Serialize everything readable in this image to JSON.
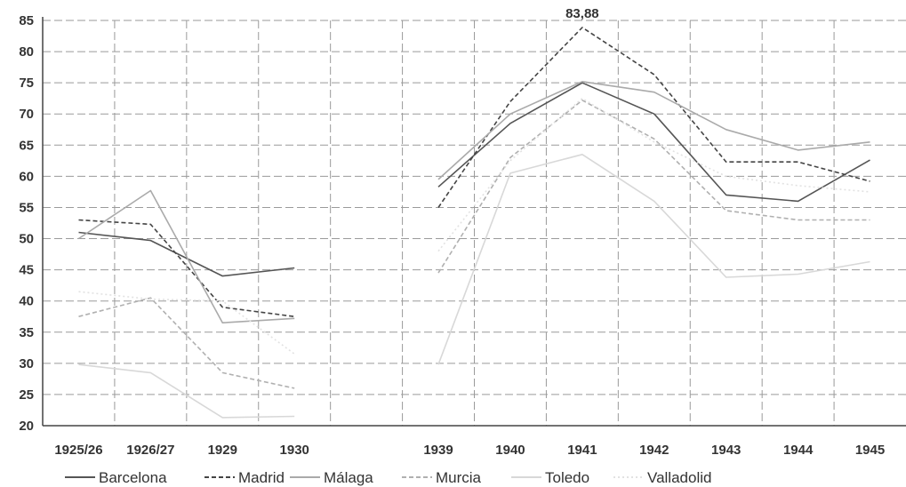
{
  "chart_data": {
    "type": "line",
    "categories": [
      "1925/26",
      "1926/27",
      "1929",
      "1930",
      "",
      "1939",
      "1940",
      "1941",
      "1942",
      "1943",
      "1944",
      "1945"
    ],
    "ylim": [
      20,
      85
    ],
    "yticks": [
      20,
      25,
      30,
      35,
      40,
      45,
      50,
      55,
      60,
      65,
      70,
      75,
      80,
      85
    ],
    "grid": true,
    "legend": "bottom",
    "annotations": [
      {
        "text": "83,88",
        "category": "1941",
        "series": "Madrid"
      }
    ],
    "series": [
      {
        "name": "Barcelona",
        "color": "#555555",
        "dash": "solid",
        "values": [
          51.0,
          49.7,
          44.0,
          45.3,
          null,
          58.3,
          68.5,
          75.0,
          70.0,
          57.0,
          56.0,
          62.6
        ]
      },
      {
        "name": "Madrid",
        "color": "#444444",
        "dash": "dashed",
        "values": [
          53.0,
          52.3,
          39.0,
          37.5,
          null,
          55.0,
          72.0,
          83.88,
          76.3,
          62.3,
          62.3,
          59.2
        ]
      },
      {
        "name": "Málaga",
        "color": "#aaaaaa",
        "dash": "solid",
        "values": [
          50.0,
          57.7,
          36.5,
          37.2,
          null,
          59.5,
          70.0,
          75.2,
          73.5,
          67.5,
          64.2,
          65.5
        ]
      },
      {
        "name": "Murcia",
        "color": "#b0b0b0",
        "dash": "dashed",
        "values": [
          37.5,
          40.5,
          28.5,
          26.0,
          null,
          44.5,
          63.0,
          72.2,
          66.0,
          54.5,
          53.0,
          53.0
        ]
      },
      {
        "name": "Toledo",
        "color": "#d8d8d8",
        "dash": "solid",
        "values": [
          29.8,
          28.5,
          21.3,
          21.5,
          null,
          29.8,
          60.5,
          63.5,
          56.0,
          43.8,
          44.3,
          46.3
        ]
      },
      {
        "name": "Valladolid",
        "color": "#e2e2e2",
        "dash": "dotted",
        "values": [
          41.5,
          40.3,
          40.0,
          31.5,
          null,
          48.0,
          62.5,
          72.5,
          65.5,
          60.0,
          58.5,
          57.5
        ]
      }
    ]
  }
}
